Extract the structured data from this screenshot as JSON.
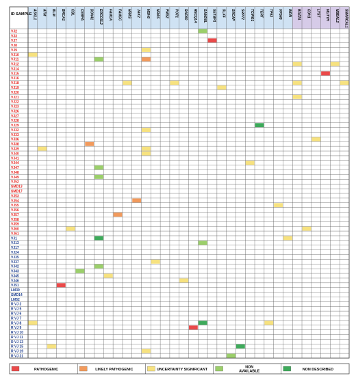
{
  "chart_data": {
    "type": "heatmap",
    "row_header": "ID SAMPLE",
    "genes": [
      "ASXL1",
      "ATM",
      "BLM",
      "BRCA1",
      "CBL",
      "CEBPA",
      "DDX41",
      "ERCC6L2",
      "FANCA",
      "FANCC",
      "HRAS",
      "JAK2",
      "MSH6",
      "NRAS",
      "PMS2",
      "POT1",
      "RAD50",
      "RECQL4",
      "SAMD9L",
      "SETBP1",
      "SLX4",
      "SRCAP",
      "SRP72",
      "TCIRG1",
      "TERT",
      "TP53",
      "VPS45",
      "WRN",
      "BAZ2A",
      "CDH1",
      "LYST",
      "MUTYH",
      "NBEAL2",
      "SMARCAL1"
    ],
    "gene_groups": [
      {
        "name": "blue",
        "count": 28,
        "color": "#cfe2f3"
      },
      {
        "name": "purple",
        "count": 6,
        "color": "#d6cbe8"
      }
    ],
    "rows": [
      {
        "label": "VJ2",
        "color": "#e52520"
      },
      {
        "label": "VJ3",
        "color": "#e52520"
      },
      {
        "label": "VJ7",
        "color": "#e52520"
      },
      {
        "label": "VJ8",
        "color": "#e52520"
      },
      {
        "label": "VJ9",
        "color": "#e52520"
      },
      {
        "label": "VJ10",
        "color": "#e52520"
      },
      {
        "label": "VJ11",
        "color": "#e52520"
      },
      {
        "label": "VJ12",
        "color": "#e52520"
      },
      {
        "label": "VJ14",
        "color": "#e52520"
      },
      {
        "label": "VJ15",
        "color": "#e52520"
      },
      {
        "label": "VJ16",
        "color": "#e52520"
      },
      {
        "label": "VJ18",
        "color": "#e52520"
      },
      {
        "label": "VJ19",
        "color": "#e52520"
      },
      {
        "label": "VJ20",
        "color": "#e52520"
      },
      {
        "label": "VJ21",
        "color": "#e52520"
      },
      {
        "label": "VJ22",
        "color": "#e52520"
      },
      {
        "label": "VJ23",
        "color": "#e52520"
      },
      {
        "label": "VJ26",
        "color": "#e52520"
      },
      {
        "label": "VJ27",
        "color": "#e52520"
      },
      {
        "label": "VJ28",
        "color": "#e52520"
      },
      {
        "label": "VJ29",
        "color": "#e52520"
      },
      {
        "label": "VJ32",
        "color": "#e52520"
      },
      {
        "label": "VJ33",
        "color": "#e52520"
      },
      {
        "label": "VJ36",
        "color": "#e52520"
      },
      {
        "label": "VJ38",
        "color": "#e52520"
      },
      {
        "label": "VJ39",
        "color": "#e52520"
      },
      {
        "label": "VJ40",
        "color": "#e52520"
      },
      {
        "label": "VJ41",
        "color": "#e52520"
      },
      {
        "label": "VJ44",
        "color": "#e52520"
      },
      {
        "label": "VJ47",
        "color": "#e52520"
      },
      {
        "label": "VJ48",
        "color": "#e52520"
      },
      {
        "label": "VJ49",
        "color": "#e52520"
      },
      {
        "label": "VJ52",
        "color": "#e52520"
      },
      {
        "label": "SMD13",
        "color": "#e52520"
      },
      {
        "label": "SMD17",
        "color": "#e52520"
      },
      {
        "label": "VJ53",
        "color": "#e52520"
      },
      {
        "label": "VJ54",
        "color": "#e52520"
      },
      {
        "label": "VJ55",
        "color": "#e52520"
      },
      {
        "label": "VJ56",
        "color": "#e52520"
      },
      {
        "label": "VJ57",
        "color": "#e52520"
      },
      {
        "label": "VJ58",
        "color": "#e52520"
      },
      {
        "label": "VJ59",
        "color": "#e52520"
      },
      {
        "label": "VJ60",
        "color": "#e52520"
      },
      {
        "label": "VJ61",
        "color": "#e52520"
      },
      {
        "label": "VJ1",
        "color": "#1f3f8f"
      },
      {
        "label": "VJ13",
        "color": "#1f3f8f"
      },
      {
        "label": "VJ17",
        "color": "#1f3f8f"
      },
      {
        "label": "VJ24",
        "color": "#1f3f8f"
      },
      {
        "label": "VJ35",
        "color": "#1f3f8f"
      },
      {
        "label": "VJ37",
        "color": "#1f3f8f"
      },
      {
        "label": "VJ42",
        "color": "#1f3f8f"
      },
      {
        "label": "VJ43",
        "color": "#1f3f8f"
      },
      {
        "label": "VJ45",
        "color": "#1f3f8f"
      },
      {
        "label": "VJ46",
        "color": "#1f3f8f"
      },
      {
        "label": "VJ51",
        "color": "#1f3f8f"
      },
      {
        "label": "LM39",
        "color": "#1f3f8f"
      },
      {
        "label": "SMD14",
        "color": "#1f3f8f"
      },
      {
        "label": "LM52",
        "color": "#1f3f8f"
      },
      {
        "label": "R VJ 2",
        "color": "#1f3f8f"
      },
      {
        "label": "R VJ 5",
        "color": "#1f3f8f"
      },
      {
        "label": "R VJ 6",
        "color": "#1f3f8f"
      },
      {
        "label": "R VJ 7",
        "color": "#1f3f8f"
      },
      {
        "label": "R VJ 8",
        "color": "#1f3f8f"
      },
      {
        "label": "R VJ 9",
        "color": "#1f3f8f"
      },
      {
        "label": "R VJ 10",
        "color": "#1f3f8f"
      },
      {
        "label": "R VJ 11",
        "color": "#1f3f8f"
      },
      {
        "label": "R VJ 13",
        "color": "#1f3f8f"
      },
      {
        "label": "R VJ 15",
        "color": "#1f3f8f"
      },
      {
        "label": "R VJ 19",
        "color": "#1f3f8f"
      },
      {
        "label": "R VJ 21",
        "color": "#1f3f8f"
      }
    ],
    "categories": [
      {
        "key": "PATHOGENIC",
        "label": "PATHOGENIC",
        "color": "#ea4a4a"
      },
      {
        "key": "LIKELY_PATHOGENIC",
        "label": "LIKELY PATHOGENIC",
        "color": "#f29a5c"
      },
      {
        "key": "UNCERTAINTY_SIGNIFICANT",
        "label": "UNCERTAINTY SIGNIFICANT",
        "color": "#f7e27f"
      },
      {
        "key": "NON_AVAILABLE",
        "label": "NON AVAILABLE",
        "color": "#9bcf6a"
      },
      {
        "key": "NON_DESCRIBED",
        "label": "NON DESCRIBED",
        "color": "#3daa5a"
      }
    ],
    "cells": [
      {
        "row": "VJ2",
        "gene": "SAMD9L",
        "cat": "NON_AVAILABLE"
      },
      {
        "row": "VJ7",
        "gene": "SETBP1",
        "cat": "PATHOGENIC"
      },
      {
        "row": "VJ9",
        "gene": "MSH6",
        "cat": "UNCERTAINTY_SIGNIFICANT"
      },
      {
        "row": "VJ10",
        "gene": "ASXL1",
        "cat": "UNCERTAINTY_SIGNIFICANT"
      },
      {
        "row": "VJ11",
        "gene": "ERCC6L2",
        "cat": "NON_AVAILABLE"
      },
      {
        "row": "VJ11",
        "gene": "MSH6",
        "cat": "LIKELY_PATHOGENIC"
      },
      {
        "row": "VJ12",
        "gene": "BAZ2A",
        "cat": "UNCERTAINTY_SIGNIFICANT"
      },
      {
        "row": "VJ12",
        "gene": "NBEAL2",
        "cat": "UNCERTAINTY_SIGNIFICANT"
      },
      {
        "row": "VJ15",
        "gene": "MUTYH",
        "cat": "PATHOGENIC"
      },
      {
        "row": "VJ18",
        "gene": "HRAS",
        "cat": "UNCERTAINTY_SIGNIFICANT"
      },
      {
        "row": "VJ18",
        "gene": "POT1",
        "cat": "UNCERTAINTY_SIGNIFICANT"
      },
      {
        "row": "VJ18",
        "gene": "BAZ2A",
        "cat": "UNCERTAINTY_SIGNIFICANT"
      },
      {
        "row": "VJ18",
        "gene": "SMARCAL1",
        "cat": "UNCERTAINTY_SIGNIFICANT"
      },
      {
        "row": "VJ19",
        "gene": "SLX4",
        "cat": "UNCERTAINTY_SIGNIFICANT"
      },
      {
        "row": "VJ21",
        "gene": "BAZ2A",
        "cat": "UNCERTAINTY_SIGNIFICANT"
      },
      {
        "row": "VJ29",
        "gene": "TERT",
        "cat": "NON_DESCRIBED"
      },
      {
        "row": "VJ32",
        "gene": "MSH6",
        "cat": "UNCERTAINTY_SIGNIFICANT"
      },
      {
        "row": "VJ36",
        "gene": "LYST",
        "cat": "UNCERTAINTY_SIGNIFICANT"
      },
      {
        "row": "VJ38",
        "gene": "DDX41",
        "cat": "LIKELY_PATHOGENIC"
      },
      {
        "row": "VJ39",
        "gene": "ATM",
        "cat": "UNCERTAINTY_SIGNIFICANT"
      },
      {
        "row": "VJ39",
        "gene": "MSH6",
        "cat": "UNCERTAINTY_SIGNIFICANT"
      },
      {
        "row": "VJ40",
        "gene": "MSH6",
        "cat": "UNCERTAINTY_SIGNIFICANT"
      },
      {
        "row": "VJ44",
        "gene": "TCIRG1",
        "cat": "UNCERTAINTY_SIGNIFICANT"
      },
      {
        "row": "VJ47",
        "gene": "ERCC6L2",
        "cat": "NON_AVAILABLE"
      },
      {
        "row": "VJ49",
        "gene": "ERCC6L2",
        "cat": "NON_AVAILABLE"
      },
      {
        "row": "VJ54",
        "gene": "JAK2",
        "cat": "LIKELY_PATHOGENIC"
      },
      {
        "row": "VJ55",
        "gene": "VPS45",
        "cat": "UNCERTAINTY_SIGNIFICANT"
      },
      {
        "row": "VJ57",
        "gene": "FANCC",
        "cat": "LIKELY_PATHOGENIC"
      },
      {
        "row": "VJ60",
        "gene": "CBL",
        "cat": "UNCERTAINTY_SIGNIFICANT"
      },
      {
        "row": "VJ60",
        "gene": "CDH1",
        "cat": "UNCERTAINTY_SIGNIFICANT"
      },
      {
        "row": "VJ1",
        "gene": "ERCC6L2",
        "cat": "NON_DESCRIBED"
      },
      {
        "row": "VJ1",
        "gene": "WRN",
        "cat": "UNCERTAINTY_SIGNIFICANT"
      },
      {
        "row": "VJ13",
        "gene": "SAMD9L",
        "cat": "NON_AVAILABLE"
      },
      {
        "row": "VJ37",
        "gene": "NRAS",
        "cat": "UNCERTAINTY_SIGNIFICANT"
      },
      {
        "row": "VJ42",
        "gene": "ERCC6L2",
        "cat": "NON_AVAILABLE"
      },
      {
        "row": "VJ43",
        "gene": "CEBPA",
        "cat": "NON_AVAILABLE"
      },
      {
        "row": "VJ45",
        "gene": "FANCA",
        "cat": "UNCERTAINTY_SIGNIFICANT"
      },
      {
        "row": "VJ46",
        "gene": "RAD50",
        "cat": "UNCERTAINTY_SIGNIFICANT"
      },
      {
        "row": "VJ51",
        "gene": "BRCA1",
        "cat": "PATHOGENIC"
      },
      {
        "row": "R VJ 8",
        "gene": "ASXL1",
        "cat": "UNCERTAINTY_SIGNIFICANT"
      },
      {
        "row": "R VJ 8",
        "gene": "SAMD9L",
        "cat": "NON_DESCRIBED"
      },
      {
        "row": "R VJ 8",
        "gene": "TP53",
        "cat": "UNCERTAINTY_SIGNIFICANT"
      },
      {
        "row": "R VJ 9",
        "gene": "RECQL4",
        "cat": "PATHOGENIC"
      },
      {
        "row": "R VJ 15",
        "gene": "BLM",
        "cat": "UNCERTAINTY_SIGNIFICANT"
      },
      {
        "row": "R VJ 15",
        "gene": "SRP72",
        "cat": "NON_DESCRIBED"
      },
      {
        "row": "R VJ 19",
        "gene": "MSH6",
        "cat": "UNCERTAINTY_SIGNIFICANT"
      },
      {
        "row": "R VJ 21",
        "gene": "SRCAP",
        "cat": "NON_AVAILABLE"
      }
    ],
    "legend_placement": "bottom",
    "grid": true
  }
}
